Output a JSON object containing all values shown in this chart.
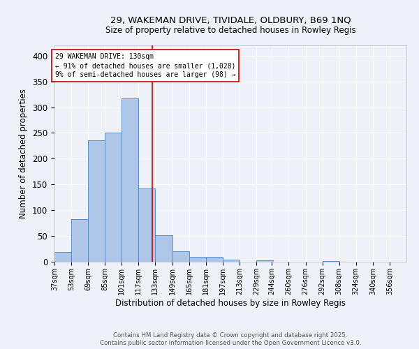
{
  "title_line1": "29, WAKEMAN DRIVE, TIVIDALE, OLDBURY, B69 1NQ",
  "title_line2": "Size of property relative to detached houses in Rowley Regis",
  "xlabel": "Distribution of detached houses by size in Rowley Regis",
  "ylabel": "Number of detached properties",
  "bin_labels": [
    "37sqm",
    "53sqm",
    "69sqm",
    "85sqm",
    "101sqm",
    "117sqm",
    "133sqm",
    "149sqm",
    "165sqm",
    "181sqm",
    "197sqm",
    "213sqm",
    "229sqm",
    "244sqm",
    "260sqm",
    "276sqm",
    "292sqm",
    "308sqm",
    "324sqm",
    "340sqm",
    "356sqm"
  ],
  "bin_edges": [
    37,
    53,
    69,
    85,
    101,
    117,
    133,
    149,
    165,
    181,
    197,
    213,
    229,
    244,
    260,
    276,
    292,
    308,
    324,
    340,
    356
  ],
  "bar_heights": [
    19,
    83,
    236,
    251,
    317,
    142,
    51,
    20,
    10,
    10,
    4,
    0,
    3,
    0,
    0,
    0,
    2,
    0,
    0,
    0
  ],
  "bar_color": "#aec6e8",
  "bar_edge_color": "#5b8fc9",
  "property_size": 130,
  "vline_color": "#cc0000",
  "annotation_text": "29 WAKEMAN DRIVE: 130sqm\n← 91% of detached houses are smaller (1,028)\n9% of semi-detached houses are larger (98) →",
  "annotation_box_edgecolor": "#cc0000",
  "annotation_box_facecolor": "#ffffff",
  "background_color": "#eef2f8",
  "grid_color": "#ffffff",
  "ylim": [
    0,
    420
  ],
  "yticks": [
    0,
    50,
    100,
    150,
    200,
    250,
    300,
    350,
    400
  ],
  "footer_line1": "Contains HM Land Registry data © Crown copyright and database right 2025.",
  "footer_line2": "Contains public sector information licensed under the Open Government Licence v3.0."
}
